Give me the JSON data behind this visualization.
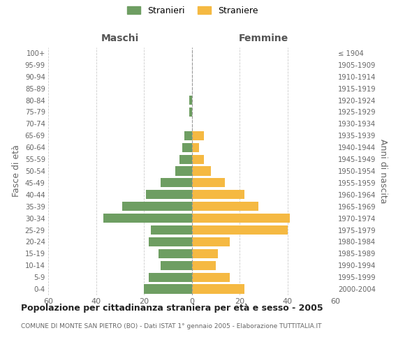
{
  "age_groups": [
    "0-4",
    "5-9",
    "10-14",
    "15-19",
    "20-24",
    "25-29",
    "30-34",
    "35-39",
    "40-44",
    "45-49",
    "50-54",
    "55-59",
    "60-64",
    "65-69",
    "70-74",
    "75-79",
    "80-84",
    "85-89",
    "90-94",
    "95-99",
    "100+"
  ],
  "birth_years": [
    "2000-2004",
    "1995-1999",
    "1990-1994",
    "1985-1989",
    "1980-1984",
    "1975-1979",
    "1970-1974",
    "1965-1969",
    "1960-1964",
    "1955-1959",
    "1950-1954",
    "1945-1949",
    "1940-1944",
    "1935-1939",
    "1930-1934",
    "1925-1929",
    "1920-1924",
    "1915-1919",
    "1910-1914",
    "1905-1909",
    "≤ 1904"
  ],
  "maschi": [
    20,
    18,
    13,
    14,
    18,
    17,
    37,
    29,
    19,
    13,
    7,
    5,
    4,
    3,
    0,
    1,
    1,
    0,
    0,
    0,
    0
  ],
  "femmine": [
    22,
    16,
    10,
    11,
    16,
    40,
    41,
    28,
    22,
    14,
    8,
    5,
    3,
    5,
    0,
    0,
    0,
    0,
    0,
    0,
    0
  ],
  "color_maschi": "#6e9e62",
  "color_femmine": "#f5b942",
  "title": "Popolazione per cittadinanza straniera per età e sesso - 2005",
  "subtitle": "COMUNE DI MONTE SAN PIETRO (BO) - Dati ISTAT 1° gennaio 2005 - Elaborazione TUTTITALIA.IT",
  "ylabel_left": "Fasce di età",
  "ylabel_right": "Anni di nascita",
  "xlabel_left": "Maschi",
  "xlabel_right": "Femmine",
  "legend_stranieri": "Stranieri",
  "legend_straniere": "Straniere",
  "xlim": 60,
  "background_color": "#ffffff",
  "grid_color": "#cccccc"
}
